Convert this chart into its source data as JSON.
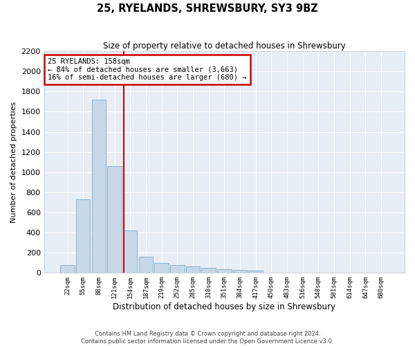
{
  "title": "25, RYELANDS, SHREWSBURY, SY3 9BZ",
  "subtitle": "Size of property relative to detached houses in Shrewsbury",
  "xlabel": "Distribution of detached houses by size in Shrewsbury",
  "ylabel": "Number of detached properties",
  "categories": [
    "22sqm",
    "55sqm",
    "88sqm",
    "121sqm",
    "154sqm",
    "187sqm",
    "219sqm",
    "252sqm",
    "285sqm",
    "318sqm",
    "351sqm",
    "384sqm",
    "417sqm",
    "450sqm",
    "483sqm",
    "516sqm",
    "548sqm",
    "581sqm",
    "614sqm",
    "647sqm",
    "680sqm"
  ],
  "values": [
    75,
    730,
    1720,
    1060,
    420,
    160,
    100,
    80,
    65,
    50,
    35,
    30,
    20,
    5,
    3,
    2,
    1,
    1,
    0,
    0,
    0
  ],
  "bar_color": "#c8d8e8",
  "bar_edge_color": "#7aaac8",
  "background_color": "#e8eef5",
  "grid_color": "#ffffff",
  "ylim": [
    0,
    2200
  ],
  "yticks": [
    0,
    200,
    400,
    600,
    800,
    1000,
    1200,
    1400,
    1600,
    1800,
    2000,
    2200
  ],
  "vline_color": "#cc0000",
  "annotation_text": "25 RYELANDS: 158sqm\n← 84% of detached houses are smaller (3,663)\n16% of semi-detached houses are larger (680) →",
  "annotation_box_color": "#ffffff",
  "annotation_box_edge": "#cc0000",
  "footer_line1": "Contains HM Land Registry data © Crown copyright and database right 2024.",
  "footer_line2": "Contains public sector information licensed under the Open Government Licence v3.0."
}
